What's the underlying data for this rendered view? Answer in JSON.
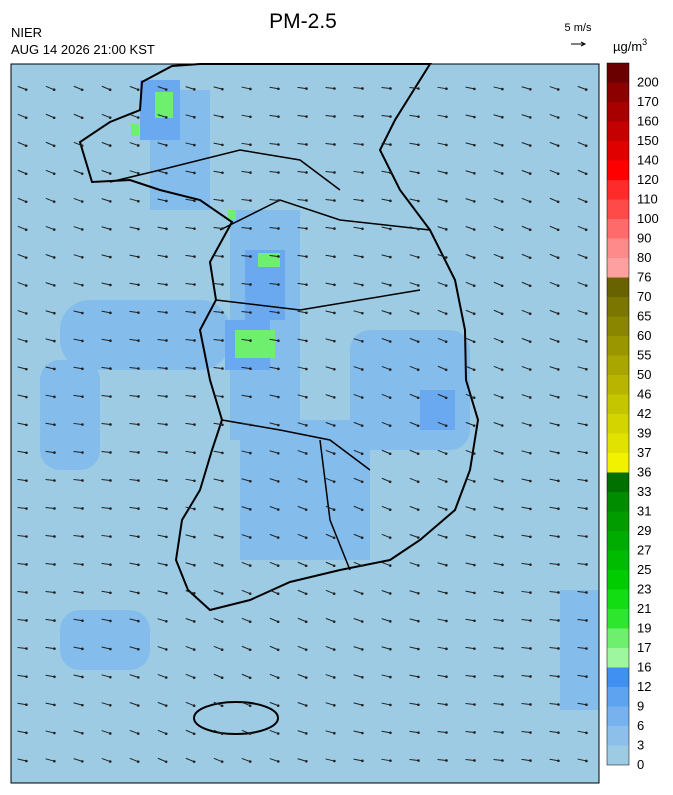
{
  "header": {
    "title": "PM-2.5",
    "agency": "NIER",
    "datetime": "AUG 14 2026 21:00 KST",
    "wind_scale": "5 m/s"
  },
  "legend": {
    "unit": "µg/m",
    "unit_sup": "3",
    "levels": [
      {
        "value": 0,
        "color": "#9ccbe3"
      },
      {
        "value": 3,
        "color": "#8cc0ea"
      },
      {
        "value": 6,
        "color": "#78b2ee"
      },
      {
        "value": 9,
        "color": "#5ea3f0"
      },
      {
        "value": 12,
        "color": "#3f90f0"
      },
      {
        "value": 16,
        "color": "#9ef79e"
      },
      {
        "value": 17,
        "color": "#6ef06e"
      },
      {
        "value": 19,
        "color": "#2ee62e"
      },
      {
        "value": 21,
        "color": "#12dc12"
      },
      {
        "value": 23,
        "color": "#00cc00"
      },
      {
        "value": 25,
        "color": "#00bc00"
      },
      {
        "value": 27,
        "color": "#00ac00"
      },
      {
        "value": 29,
        "color": "#009c00"
      },
      {
        "value": 31,
        "color": "#008c00"
      },
      {
        "value": 33,
        "color": "#007000"
      },
      {
        "value": 36,
        "color": "#f2f200"
      },
      {
        "value": 37,
        "color": "#e2e200"
      },
      {
        "value": 39,
        "color": "#d4d400"
      },
      {
        "value": 42,
        "color": "#c6c600"
      },
      {
        "value": 46,
        "color": "#b8b400"
      },
      {
        "value": 50,
        "color": "#aaa600"
      },
      {
        "value": 55,
        "color": "#9a9600"
      },
      {
        "value": 60,
        "color": "#8a8600"
      },
      {
        "value": 65,
        "color": "#7a7600"
      },
      {
        "value": 70,
        "color": "#686200"
      },
      {
        "value": 76,
        "color": "#ffa0a0"
      },
      {
        "value": 80,
        "color": "#ff8a8a"
      },
      {
        "value": 90,
        "color": "#ff6a6a"
      },
      {
        "value": 100,
        "color": "#ff4a4a"
      },
      {
        "value": 110,
        "color": "#ff2a2a"
      },
      {
        "value": 120,
        "color": "#ff0000"
      },
      {
        "value": 140,
        "color": "#e00000"
      },
      {
        "value": 150,
        "color": "#c40000"
      },
      {
        "value": 160,
        "color": "#a80000"
      },
      {
        "value": 170,
        "color": "#8c0000"
      },
      {
        "value": 200,
        "color": "#6a0000"
      }
    ]
  }
}
